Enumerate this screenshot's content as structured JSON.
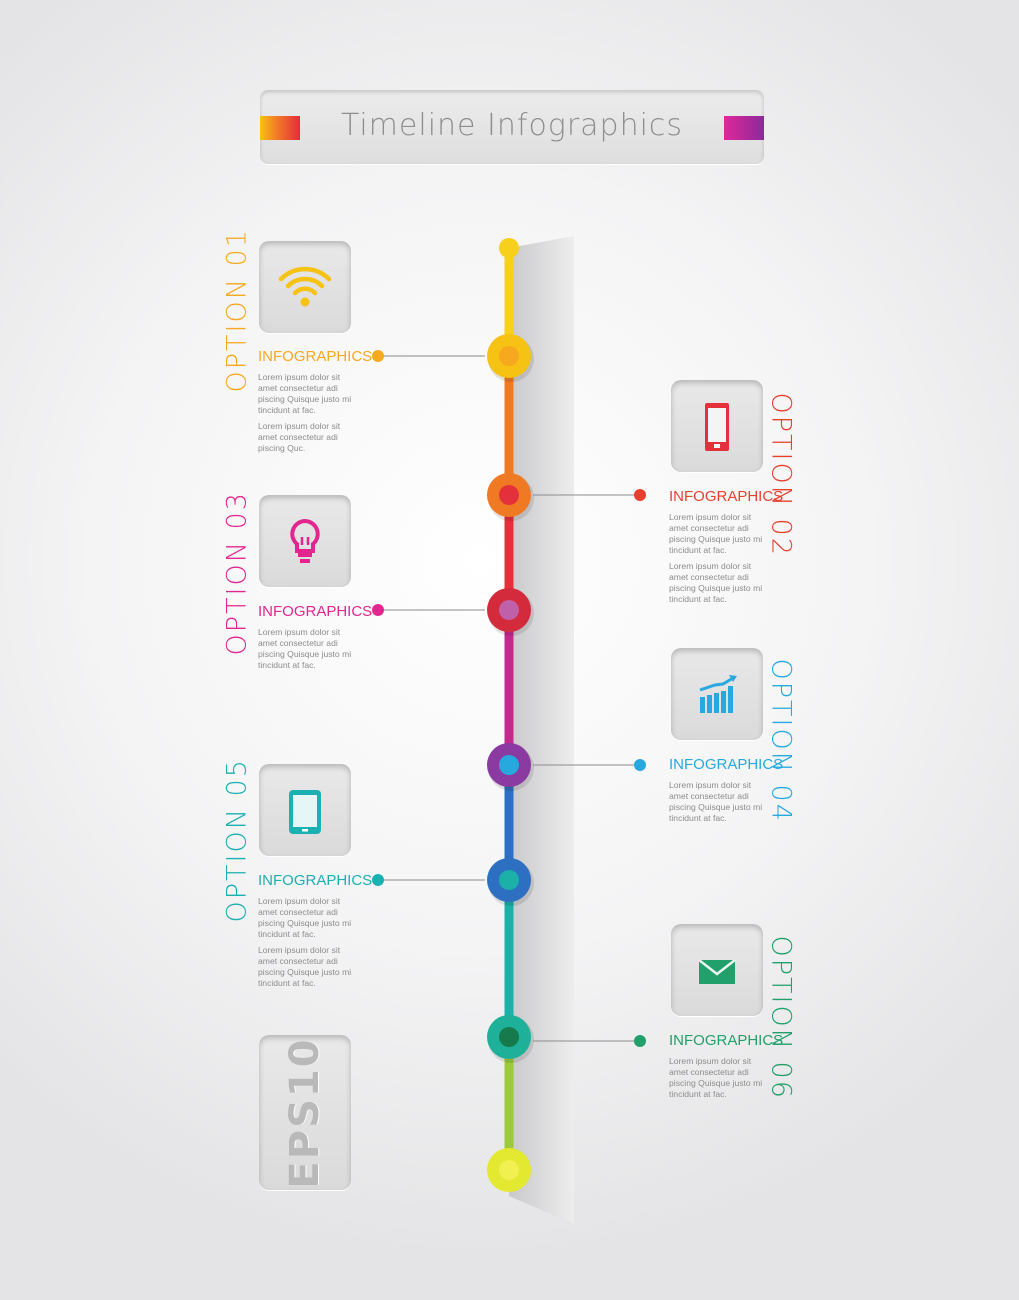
{
  "header": {
    "title": "Timeline Infographics",
    "accent_left": "#f0702a",
    "accent_right": "#a02a9a"
  },
  "badge": {
    "text": "EPS10"
  },
  "options": [
    {
      "label": "OPTION 01",
      "heading": "INFOGRAPHICS",
      "side": "left",
      "color": "#f6a81e",
      "icon": "wifi-icon",
      "body": [
        "Lorem ipsum dolor sit amet consectetur adi piscing Quisque justo mi tincidunt at fac.",
        "Lorem ipsum dolor sit amet consectetur adi piscing Quc."
      ]
    },
    {
      "label": "OPTION 02",
      "heading": "INFOGRAPHICS",
      "side": "right",
      "color": "#e8402f",
      "icon": "smartphone-icon",
      "body": [
        "Lorem ipsum dolor sit amet consectetur adi piscing Quisque justo mi tincidunt at fac.",
        "Lorem ipsum dolor sit amet consectetur adi piscing Quisque justo mi tincidunt at fac."
      ]
    },
    {
      "label": "OPTION 03",
      "heading": "INFOGRAPHICS",
      "side": "left",
      "color": "#e2268f",
      "icon": "lightbulb-icon",
      "body": [
        "Lorem ipsum dolor sit amet consectetur adi piscing Quisque justo mi tincidunt at fac."
      ]
    },
    {
      "label": "OPTION 04",
      "heading": "INFOGRAPHICS",
      "side": "right",
      "color": "#27a9e0",
      "icon": "bar-chart-icon",
      "body": [
        "Lorem ipsum dolor sit amet consectetur adi piscing Quisque justo mi tincidunt at fac."
      ]
    },
    {
      "label": "OPTION 05",
      "heading": "INFOGRAPHICS",
      "side": "left",
      "color": "#1bb0b2",
      "icon": "tablet-icon",
      "body": [
        "Lorem ipsum dolor sit amet consectetur adi piscing Quisque justo mi tincidunt at fac.",
        "Lorem ipsum dolor sit amet consectetur adi piscing Quisque justo mi tincidunt at fac."
      ]
    },
    {
      "label": "OPTION 06",
      "heading": "INFOGRAPHICS",
      "side": "right",
      "color": "#21a06b",
      "icon": "envelope-icon",
      "body": [
        "Lorem ipsum dolor sit amet consectetur adi piscing Quisque justo mi tincidunt at fac."
      ]
    }
  ],
  "timeline_colors": [
    "#f6d01a",
    "#f6b21c",
    "#f07a24",
    "#e4303a",
    "#c42a8e",
    "#8a3aa0",
    "#2d6fc0",
    "#1f9fd8",
    "#1bb0a8",
    "#1fa070",
    "#9dca3c",
    "#e3e830"
  ]
}
